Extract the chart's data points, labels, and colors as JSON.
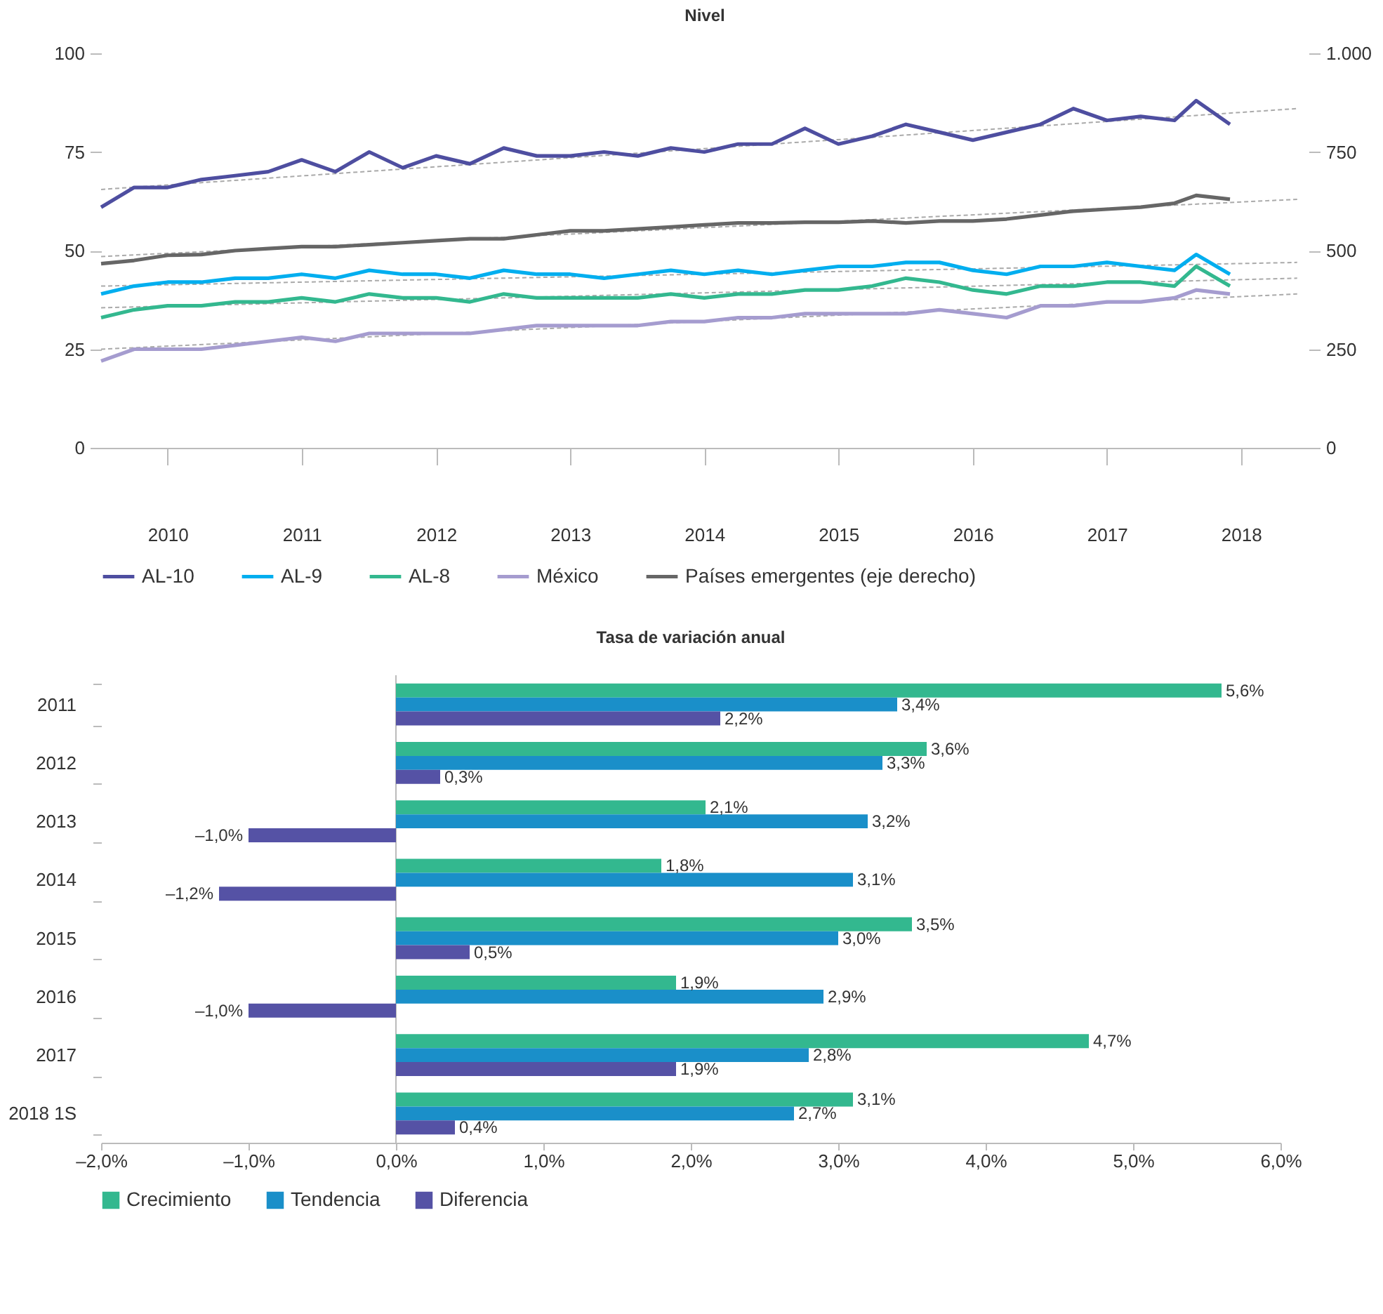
{
  "chart_data": [
    {
      "type": "line",
      "title": "Nivel",
      "x": [
        "2010-01",
        "2010-04",
        "2010-07",
        "2010-10",
        "2011-01",
        "2011-04",
        "2011-07",
        "2011-10",
        "2012-01",
        "2012-04",
        "2012-07",
        "2012-10",
        "2013-01",
        "2013-04",
        "2013-07",
        "2013-10",
        "2014-01",
        "2014-04",
        "2014-07",
        "2014-10",
        "2015-01",
        "2015-04",
        "2015-07",
        "2015-10",
        "2016-01",
        "2016-04",
        "2016-07",
        "2016-10",
        "2017-01",
        "2017-04",
        "2017-07",
        "2017-10",
        "2018-01",
        "2018-03",
        "2018-06"
      ],
      "xlim": [
        "2010-01",
        "2019-01"
      ],
      "xticks": [
        {
          "value": "2010-07",
          "label": "2010"
        },
        {
          "value": "2011-07",
          "label": "2011"
        },
        {
          "value": "2012-07",
          "label": "2012"
        },
        {
          "value": "2013-07",
          "label": "2013"
        },
        {
          "value": "2014-07",
          "label": "2014"
        },
        {
          "value": "2015-07",
          "label": "2015"
        },
        {
          "value": "2016-07",
          "label": "2016"
        },
        {
          "value": "2017-07",
          "label": "2017"
        },
        {
          "value": "2018-07",
          "label": "2018"
        }
      ],
      "ylim": [
        0,
        100
      ],
      "yticks": [
        0,
        25,
        50,
        75,
        100
      ],
      "y2lim": [
        0,
        1000
      ],
      "y2ticks": [
        0,
        250,
        500,
        750,
        {
          "value": 1000,
          "label": "1.000"
        }
      ],
      "legend": "bottom",
      "series": [
        {
          "name": "AL-10",
          "color": "#4e4ea0",
          "values": [
            61,
            66,
            66,
            68,
            69,
            70,
            73,
            70,
            75,
            71,
            74,
            72,
            76,
            74,
            74,
            75,
            74,
            76,
            75,
            77,
            77,
            81,
            77,
            79,
            82,
            80,
            78,
            80,
            82,
            86,
            83,
            84,
            83,
            88,
            82
          ]
        },
        {
          "name": "AL-9",
          "color": "#00aeef",
          "values": [
            39,
            41,
            42,
            42,
            43,
            43,
            44,
            43,
            45,
            44,
            44,
            43,
            45,
            44,
            44,
            43,
            44,
            45,
            44,
            45,
            44,
            45,
            46,
            46,
            47,
            47,
            45,
            44,
            46,
            46,
            47,
            46,
            45,
            49,
            44
          ]
        },
        {
          "name": "AL-8",
          "color": "#33b88f",
          "values": [
            33,
            35,
            36,
            36,
            37,
            37,
            38,
            37,
            39,
            38,
            38,
            37,
            39,
            38,
            38,
            38,
            38,
            39,
            38,
            39,
            39,
            40,
            40,
            41,
            43,
            42,
            40,
            39,
            41,
            41,
            42,
            42,
            41,
            46,
            41
          ]
        },
        {
          "name": "México",
          "color": "#a59ccf",
          "values": [
            22,
            25,
            25,
            25,
            26,
            27,
            28,
            27,
            29,
            29,
            29,
            29,
            30,
            31,
            31,
            31,
            31,
            32,
            32,
            33,
            33,
            34,
            34,
            34,
            34,
            35,
            34,
            33,
            36,
            36,
            37,
            37,
            38,
            40,
            39
          ]
        },
        {
          "name": "Países emergentes (eje derecho)",
          "color": "#666666",
          "axis": "y2",
          "values": [
            467,
            475,
            488,
            490,
            500,
            505,
            510,
            510,
            515,
            520,
            525,
            530,
            530,
            540,
            550,
            550,
            555,
            560,
            565,
            570,
            570,
            572,
            572,
            575,
            570,
            575,
            575,
            580,
            590,
            600,
            605,
            610,
            620,
            640,
            630
          ]
        },
        {
          "type": "line",
          "x": [
            "2010-01",
            "2018-12"
          ],
          "values": [
            65.5,
            86
          ],
          "color": "#aaaaaa",
          "line_style": "dashed"
        },
        {
          "type": "line",
          "x": [
            "2010-01",
            "2018-12"
          ],
          "values": [
            41,
            47
          ],
          "color": "#aaaaaa",
          "line_style": "dashed"
        },
        {
          "type": "line",
          "x": [
            "2010-01",
            "2018-12"
          ],
          "values": [
            35.5,
            43
          ],
          "color": "#aaaaaa",
          "line_style": "dashed"
        },
        {
          "type": "line",
          "x": [
            "2010-01",
            "2018-12"
          ],
          "values": [
            25,
            39
          ],
          "color": "#aaaaaa",
          "line_style": "dashed"
        },
        {
          "type": "line",
          "x": [
            "2010-01",
            "2018-12"
          ],
          "axis": "y2",
          "values": [
            485,
            630
          ],
          "color": "#aaaaaa",
          "line_style": "dashed"
        }
      ]
    },
    {
      "type": "bar",
      "orientation": "horizontal",
      "title": "Tasa de variación anual",
      "categories": [
        "2011",
        "2012",
        "2013",
        "2014",
        "2015",
        "2016",
        "2017",
        "2018 1S"
      ],
      "xlim": [
        -2,
        6
      ],
      "xticks": [
        {
          "value": -2,
          "label": "–2,0%"
        },
        {
          "value": -1,
          "label": "–1,0%"
        },
        {
          "value": 0,
          "label": "0,0%"
        },
        {
          "value": 1,
          "label": "1,0%"
        },
        {
          "value": 2,
          "label": "2,0%"
        },
        {
          "value": 3,
          "label": "3,0%"
        },
        {
          "value": 4,
          "label": "4,0%"
        },
        {
          "value": 5,
          "label": "5,0%"
        },
        {
          "value": 6,
          "label": "6,0%"
        }
      ],
      "legend": "bottom",
      "ref_lines": [
        {
          "axis": "x",
          "value": 0,
          "color": "#bbbbbb"
        }
      ],
      "series": [
        {
          "name": "Crecimiento",
          "color": "#33b88f",
          "values": [
            5.6,
            3.6,
            2.1,
            1.8,
            3.5,
            1.9,
            4.7,
            3.1
          ],
          "value_labels": [
            "5,6%",
            "3,6%",
            "2,1%",
            "1,8%",
            "3,5%",
            "1,9%",
            "4,7%",
            "3,1%"
          ]
        },
        {
          "name": "Tendencia",
          "color": "#1a8fc9",
          "values": [
            3.4,
            3.3,
            3.2,
            3.1,
            3.0,
            2.9,
            2.8,
            2.7
          ],
          "value_labels": [
            "3,4%",
            "3,3%",
            "3,2%",
            "3,1%",
            "3,0%",
            "2,9%",
            "2,8%",
            "2,7%"
          ]
        },
        {
          "name": "Diferencia",
          "color": "#5552a5",
          "values": [
            2.2,
            0.3,
            -1.0,
            -1.2,
            0.5,
            -1.0,
            1.9,
            0.4
          ],
          "value_labels": [
            "2,2%",
            "0,3%",
            "–1,0%",
            "–1,2%",
            "0,5%",
            "–1,0%",
            "1,9%",
            "0,4%"
          ]
        }
      ]
    }
  ]
}
